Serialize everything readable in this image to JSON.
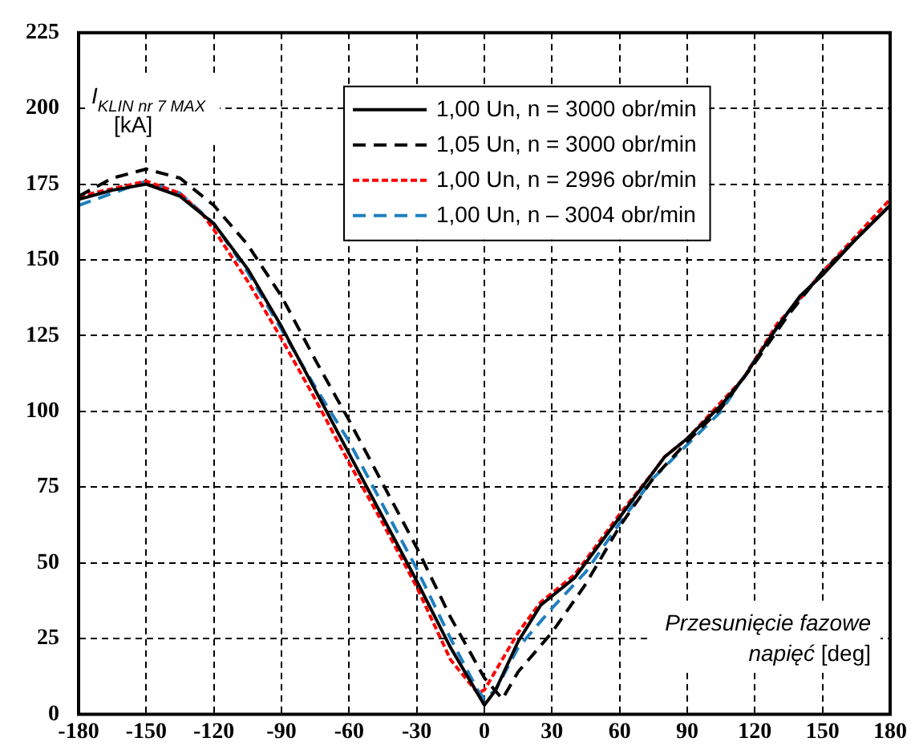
{
  "chart_data": {
    "type": "line",
    "xlabel": "Przesunięcie fazowe napięć [deg]",
    "ylabel": "I$_{KLIN nr 7 MAX}$ [kA]",
    "xlim": [
      -180,
      180
    ],
    "xticks": [
      -180,
      -150,
      -120,
      -90,
      -60,
      -30,
      0,
      30,
      60,
      90,
      120,
      150,
      180
    ],
    "ylim": [
      0,
      225
    ],
    "yticks": [
      0,
      25,
      50,
      75,
      100,
      125,
      150,
      175,
      200,
      225
    ],
    "grid": true,
    "legend": "top",
    "marker": "none",
    "series": [
      {
        "name": "1,00 Un, n = 3000 obr/min",
        "color": "#000000",
        "line_style": "solid",
        "x": [
          -180,
          -165,
          -150,
          -135,
          -120,
          -105,
          -90,
          -75,
          -60,
          -45,
          -30,
          -15,
          0,
          5,
          15,
          25,
          40,
          50,
          60,
          75,
          80,
          90,
          105,
          115,
          130,
          140,
          150,
          165,
          180
        ],
        "values": [
          170,
          173,
          175,
          171,
          162,
          147,
          128,
          107,
          86,
          65,
          44,
          22,
          3,
          8,
          24,
          36,
          45,
          55,
          65,
          80,
          85,
          91,
          102,
          111,
          128,
          138,
          145,
          157,
          168
        ]
      },
      {
        "name": "1,05 Un, n = 3000 obr/min",
        "color": "#000000",
        "line_style": "dashed",
        "x": [
          -180,
          -165,
          -150,
          -135,
          -120,
          -105,
          -90,
          -75,
          -60,
          -45,
          -30,
          -15,
          0,
          8,
          15,
          30,
          45,
          60,
          75,
          90,
          105,
          120,
          135,
          150,
          165,
          180
        ],
        "values": [
          171,
          177,
          180,
          177,
          168,
          155,
          138,
          117,
          97,
          76,
          55,
          32,
          12,
          5,
          14,
          27,
          43,
          62,
          78,
          90,
          101,
          116,
          132,
          146,
          157,
          168
        ]
      },
      {
        "name": "1,00 Un, n = 2996 obr/min",
        "color": "#ff0000",
        "line_style": "dotted",
        "x": [
          -180,
          -150,
          -135,
          -125,
          -120,
          -105,
          -90,
          -75,
          -60,
          -45,
          -30,
          -15,
          -3,
          0,
          15,
          25,
          40,
          50,
          60,
          75,
          80,
          90,
          105,
          115,
          130,
          140,
          150,
          165,
          180
        ],
        "values": [
          171,
          176,
          172,
          165,
          160,
          143,
          124,
          104,
          83,
          63,
          42,
          18,
          7,
          8,
          27,
          37,
          46,
          56,
          66,
          80,
          85,
          91,
          103,
          111,
          129,
          137,
          146,
          158,
          170
        ]
      },
      {
        "name": "1,00 Un, n – 3004 obr/min",
        "color": "#1f7fbf",
        "line_style": "dashed",
        "x": [
          -180,
          -150,
          -135,
          -120,
          -105,
          -90,
          -75,
          -60,
          -45,
          -30,
          -15,
          -3,
          0,
          5,
          15,
          30,
          45,
          60,
          75,
          90,
          105,
          120,
          135,
          150,
          165,
          180
        ],
        "values": [
          168,
          176,
          172,
          162,
          146,
          127,
          108,
          90,
          69,
          48,
          25,
          8,
          5,
          8,
          22,
          35,
          47,
          63,
          78,
          89,
          100,
          117,
          133,
          146,
          157,
          168
        ]
      }
    ]
  }
}
